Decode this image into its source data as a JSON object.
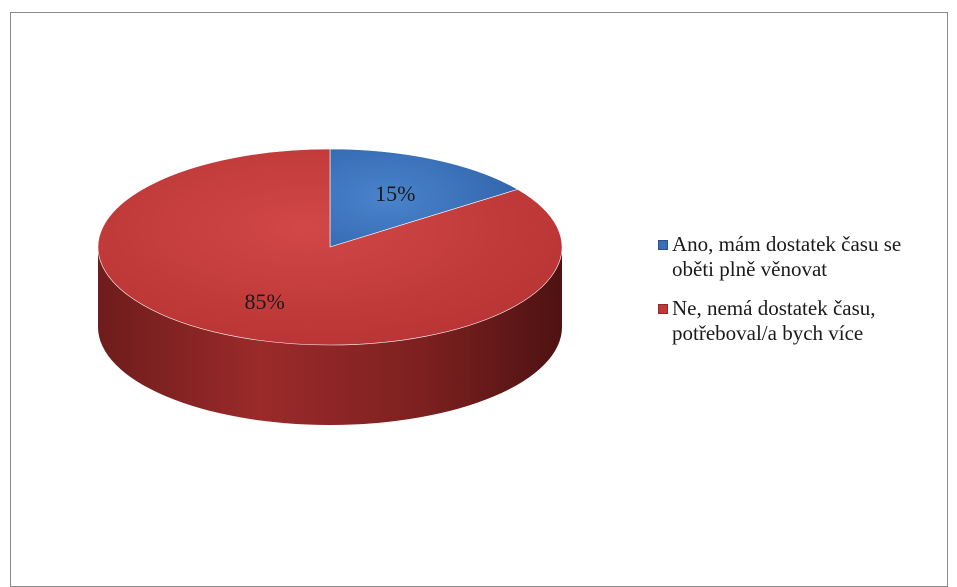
{
  "chart_data": {
    "type": "pie",
    "style": "3d",
    "slices": [
      {
        "name": "Ano, mám dostatek času se oběti plně věnovat",
        "value": 15,
        "label": "15%",
        "color": "#3a6fb8",
        "side_color": "#23477a"
      },
      {
        "name": "Ne, nemá dostatek času, potřeboval/a bych více",
        "value": 85,
        "label": "85%",
        "color": "#c0393a",
        "side_color": "#7a1f1f"
      }
    ],
    "legend": {
      "position": "right",
      "items": [
        "Ano, mám dostatek času se oběti plně věnovat",
        "Ne, nemá dostatek času, potřeboval/a bych více"
      ]
    }
  }
}
